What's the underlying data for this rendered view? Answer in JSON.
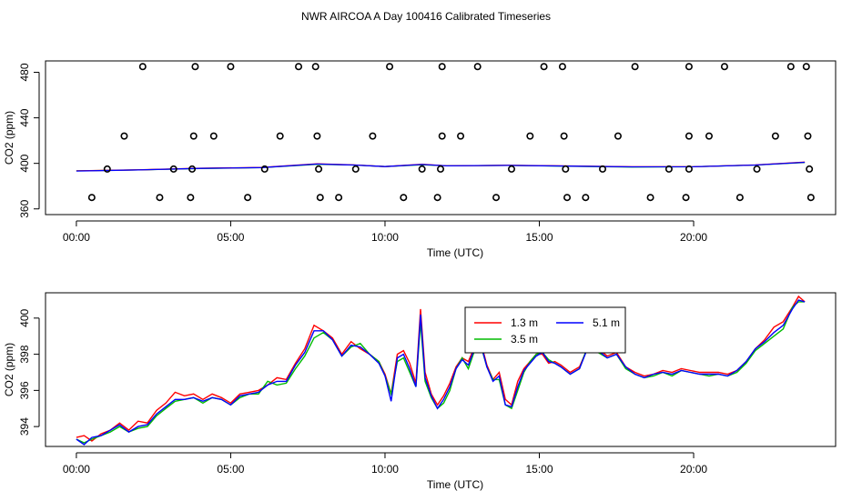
{
  "title": "NWR AIRCOA A  Day 100416  Calibrated Timeseries",
  "colors": {
    "red": "#ff0000",
    "green": "#00bb00",
    "blue": "#0000ff",
    "frame": "#000000"
  },
  "chart_data": [
    {
      "type": "scatter",
      "xlabel": "Time (UTC)",
      "ylabel": "CO2 (ppm)",
      "xlim": [
        -1.0,
        24.6
      ],
      "ylim": [
        355,
        490
      ],
      "x_ticks": [
        0,
        5,
        10,
        15,
        20
      ],
      "x_tick_labels": [
        "00:00",
        "05:00",
        "10:00",
        "15:00",
        "20:00"
      ],
      "y_ticks": [
        360,
        400,
        440,
        480
      ],
      "y_tick_labels": [
        "360",
        "400",
        "440",
        "480"
      ],
      "grid": false,
      "circles": {
        "x": [
          2.15,
          3.85,
          5.0,
          7.2,
          7.75,
          10.15,
          11.85,
          13.0,
          15.15,
          15.75,
          18.1,
          19.85,
          21.0,
          23.15,
          23.65,
          1.55,
          3.8,
          4.45,
          6.6,
          7.8,
          9.6,
          11.85,
          12.45,
          14.7,
          15.8,
          17.55,
          19.85,
          20.5,
          22.65,
          23.7,
          1.0,
          3.15,
          3.75,
          6.1,
          7.85,
          9.05,
          11.2,
          11.8,
          14.1,
          15.85,
          17.05,
          19.2,
          19.85,
          22.05,
          23.75,
          0.5,
          2.7,
          3.7,
          5.55,
          7.9,
          8.5,
          10.6,
          11.7,
          13.6,
          15.9,
          16.5,
          18.6,
          19.75,
          21.5,
          23.8
        ],
        "y": [
          485,
          485,
          485,
          485,
          485,
          485,
          485,
          485,
          485,
          485,
          485,
          485,
          485,
          485,
          485,
          424,
          424,
          424,
          424,
          424,
          424,
          424,
          424,
          424,
          424,
          424,
          424,
          424,
          424,
          424,
          395,
          395,
          395,
          395,
          395,
          395,
          395,
          395,
          395,
          395,
          395,
          395,
          395,
          395,
          395,
          370,
          370,
          370,
          370,
          370,
          370,
          370,
          370,
          370,
          370,
          370,
          370,
          370,
          370,
          370
        ]
      },
      "lines": [
        {
          "color": "green",
          "x": [
            0,
            2,
            4,
            6,
            7.8,
            9,
            10,
            11.2,
            12,
            14,
            16,
            18,
            20,
            22,
            23.6
          ],
          "y": [
            393.4,
            394.2,
            395.5,
            396.2,
            399.2,
            398.5,
            397.2,
            398.8,
            397.8,
            398.2,
            397.5,
            396.8,
            397.0,
            398.5,
            400.8
          ]
        },
        {
          "color": "red",
          "x": [
            0,
            2,
            4,
            6,
            7.8,
            9,
            10,
            11.2,
            12,
            14,
            16,
            18,
            20,
            22,
            23.6
          ],
          "y": [
            393.4,
            394.3,
            395.7,
            396.4,
            399.6,
            398.6,
            397.2,
            399.2,
            397.8,
            398.3,
            397.7,
            397.0,
            397.0,
            398.6,
            401.1
          ]
        },
        {
          "color": "blue",
          "x": [
            0,
            2,
            4,
            6,
            7.8,
            9,
            10,
            11.2,
            12,
            14,
            16,
            18,
            20,
            22,
            23.6
          ],
          "y": [
            393.3,
            394.2,
            395.6,
            396.3,
            399.4,
            398.5,
            397.2,
            399.0,
            397.8,
            398.2,
            397.6,
            396.9,
            397.0,
            398.5,
            400.9
          ]
        }
      ]
    },
    {
      "type": "line",
      "xlabel": "Time (UTC)",
      "ylabel": "CO2 (ppm)",
      "xlim": [
        -1.0,
        24.6
      ],
      "ylim": [
        392.9,
        401.4
      ],
      "x_ticks": [
        0,
        5,
        10,
        15,
        20
      ],
      "x_tick_labels": [
        "00:00",
        "05:00",
        "10:00",
        "15:00",
        "20:00"
      ],
      "y_ticks": [
        394,
        396,
        398,
        400
      ],
      "y_tick_labels": [
        "394",
        "396",
        "398",
        "400"
      ],
      "grid": false,
      "legend_position": "top-center",
      "series": [
        {
          "name": "1.3 m",
          "color": "red",
          "x": [
            0,
            0.25,
            0.5,
            0.8,
            1.1,
            1.4,
            1.7,
            2.0,
            2.3,
            2.6,
            2.9,
            3.2,
            3.5,
            3.8,
            4.1,
            4.4,
            4.7,
            5.0,
            5.3,
            5.6,
            5.9,
            6.2,
            6.5,
            6.8,
            7.1,
            7.4,
            7.7,
            8.0,
            8.3,
            8.6,
            8.9,
            9.2,
            9.5,
            9.8,
            10.0,
            10.2,
            10.4,
            10.6,
            10.8,
            11.0,
            11.15,
            11.3,
            11.5,
            11.7,
            11.9,
            12.1,
            12.3,
            12.5,
            12.7,
            12.9,
            13.1,
            13.3,
            13.5,
            13.7,
            13.9,
            14.1,
            14.3,
            14.5,
            14.7,
            14.9,
            15.1,
            15.3,
            15.5,
            15.7,
            16.0,
            16.3,
            16.6,
            16.9,
            17.2,
            17.5,
            17.8,
            18.1,
            18.4,
            18.7,
            19.0,
            19.3,
            19.6,
            19.9,
            20.2,
            20.5,
            20.8,
            21.1,
            21.4,
            21.7,
            22.0,
            22.3,
            22.6,
            22.9,
            23.2,
            23.4,
            23.6
          ],
          "y": [
            393.4,
            393.5,
            393.2,
            393.6,
            393.8,
            394.2,
            393.8,
            394.3,
            394.2,
            394.9,
            395.3,
            395.9,
            395.7,
            395.8,
            395.5,
            395.8,
            395.6,
            395.3,
            395.8,
            395.9,
            396.0,
            396.3,
            396.7,
            396.6,
            397.5,
            398.3,
            399.6,
            399.3,
            398.9,
            398.0,
            398.7,
            398.3,
            398.0,
            397.6,
            396.9,
            395.8,
            398.0,
            398.2,
            397.5,
            396.4,
            400.5,
            397.0,
            395.8,
            395.2,
            395.7,
            396.4,
            397.3,
            397.8,
            397.6,
            398.4,
            398.7,
            397.4,
            396.6,
            397.0,
            395.5,
            395.2,
            396.5,
            397.2,
            397.6,
            398.0,
            398.0,
            397.5,
            397.6,
            397.4,
            397.0,
            397.3,
            398.5,
            398.3,
            397.9,
            398.1,
            397.3,
            397.0,
            396.8,
            396.9,
            397.1,
            397.0,
            397.2,
            397.1,
            397.0,
            397.0,
            397.0,
            396.9,
            397.1,
            397.6,
            398.3,
            398.8,
            399.5,
            399.8,
            400.6,
            401.2,
            400.9
          ]
        },
        {
          "name": "3.5 m",
          "color": "green",
          "x": [
            0,
            0.25,
            0.5,
            0.8,
            1.1,
            1.4,
            1.7,
            2.0,
            2.3,
            2.6,
            2.9,
            3.2,
            3.5,
            3.8,
            4.1,
            4.4,
            4.7,
            5.0,
            5.3,
            5.6,
            5.9,
            6.2,
            6.5,
            6.8,
            7.1,
            7.4,
            7.7,
            8.0,
            8.3,
            8.6,
            8.9,
            9.2,
            9.5,
            9.8,
            10.0,
            10.2,
            10.4,
            10.6,
            10.8,
            11.0,
            11.15,
            11.3,
            11.5,
            11.7,
            11.9,
            12.1,
            12.3,
            12.5,
            12.7,
            12.9,
            13.1,
            13.3,
            13.5,
            13.7,
            13.9,
            14.1,
            14.3,
            14.5,
            14.7,
            14.9,
            15.1,
            15.3,
            15.5,
            15.7,
            16.0,
            16.3,
            16.6,
            16.9,
            17.2,
            17.5,
            17.8,
            18.1,
            18.4,
            18.7,
            19.0,
            19.3,
            19.6,
            19.9,
            20.2,
            20.5,
            20.8,
            21.1,
            21.4,
            21.7,
            22.0,
            22.3,
            22.6,
            22.9,
            23.2,
            23.4,
            23.6
          ],
          "y": [
            393.3,
            393.1,
            393.3,
            393.5,
            393.7,
            394.0,
            393.7,
            393.9,
            394.0,
            394.6,
            395.0,
            395.4,
            395.5,
            395.6,
            395.3,
            395.6,
            395.5,
            395.2,
            395.6,
            395.8,
            395.8,
            396.5,
            396.3,
            396.4,
            397.2,
            397.9,
            398.9,
            399.2,
            398.8,
            397.9,
            398.4,
            398.6,
            398.0,
            397.6,
            396.8,
            395.8,
            397.6,
            397.8,
            397.0,
            396.2,
            399.8,
            396.5,
            395.6,
            395.0,
            395.3,
            396.0,
            397.2,
            397.8,
            397.2,
            398.2,
            398.5,
            397.3,
            396.6,
            396.6,
            395.2,
            395.0,
            396.0,
            397.0,
            397.6,
            398.0,
            398.1,
            397.7,
            397.5,
            397.3,
            396.9,
            397.2,
            398.6,
            398.1,
            397.8,
            398.0,
            397.2,
            396.9,
            396.7,
            396.8,
            397.0,
            396.8,
            397.1,
            397.0,
            396.9,
            396.8,
            396.9,
            396.8,
            397.0,
            397.5,
            398.2,
            398.6,
            399.0,
            399.4,
            400.6,
            400.9,
            400.9
          ]
        },
        {
          "name": "5.1 m",
          "color": "blue",
          "x": [
            0,
            0.25,
            0.5,
            0.8,
            1.1,
            1.4,
            1.7,
            2.0,
            2.3,
            2.6,
            2.9,
            3.2,
            3.5,
            3.8,
            4.1,
            4.4,
            4.7,
            5.0,
            5.3,
            5.6,
            5.9,
            6.2,
            6.5,
            6.8,
            7.1,
            7.4,
            7.7,
            8.0,
            8.3,
            8.6,
            8.9,
            9.2,
            9.5,
            9.8,
            10.0,
            10.2,
            10.4,
            10.6,
            10.8,
            11.0,
            11.15,
            11.3,
            11.5,
            11.7,
            11.9,
            12.1,
            12.3,
            12.5,
            12.7,
            12.9,
            13.1,
            13.3,
            13.5,
            13.7,
            13.9,
            14.1,
            14.3,
            14.5,
            14.7,
            14.9,
            15.1,
            15.3,
            15.5,
            15.7,
            16.0,
            16.3,
            16.6,
            16.9,
            17.2,
            17.5,
            17.8,
            18.1,
            18.4,
            18.7,
            19.0,
            19.3,
            19.6,
            19.9,
            20.2,
            20.5,
            20.8,
            21.1,
            21.4,
            21.7,
            22.0,
            22.3,
            22.6,
            22.9,
            23.2,
            23.4,
            23.6
          ],
          "y": [
            393.3,
            393.0,
            393.4,
            393.5,
            393.8,
            394.1,
            393.7,
            394.0,
            394.1,
            394.7,
            395.1,
            395.5,
            395.5,
            395.6,
            395.4,
            395.6,
            395.5,
            395.2,
            395.7,
            395.8,
            395.9,
            396.3,
            396.5,
            396.5,
            397.4,
            398.1,
            399.3,
            399.3,
            398.8,
            397.9,
            398.5,
            398.4,
            398.0,
            397.5,
            396.8,
            395.4,
            397.8,
            398.0,
            397.2,
            396.2,
            400.2,
            396.7,
            395.7,
            395.0,
            395.5,
            396.2,
            397.2,
            397.7,
            397.4,
            398.3,
            398.6,
            397.3,
            396.5,
            396.8,
            395.2,
            395.1,
            396.2,
            397.1,
            397.5,
            397.9,
            398.1,
            397.6,
            397.5,
            397.3,
            396.9,
            397.2,
            398.5,
            398.2,
            397.8,
            398.0,
            397.3,
            396.9,
            396.7,
            396.9,
            397.0,
            396.9,
            397.1,
            397.0,
            396.9,
            396.9,
            396.9,
            396.8,
            397.1,
            397.6,
            398.3,
            398.7,
            399.2,
            399.6,
            400.5,
            401.0,
            400.9
          ]
        }
      ]
    }
  ]
}
